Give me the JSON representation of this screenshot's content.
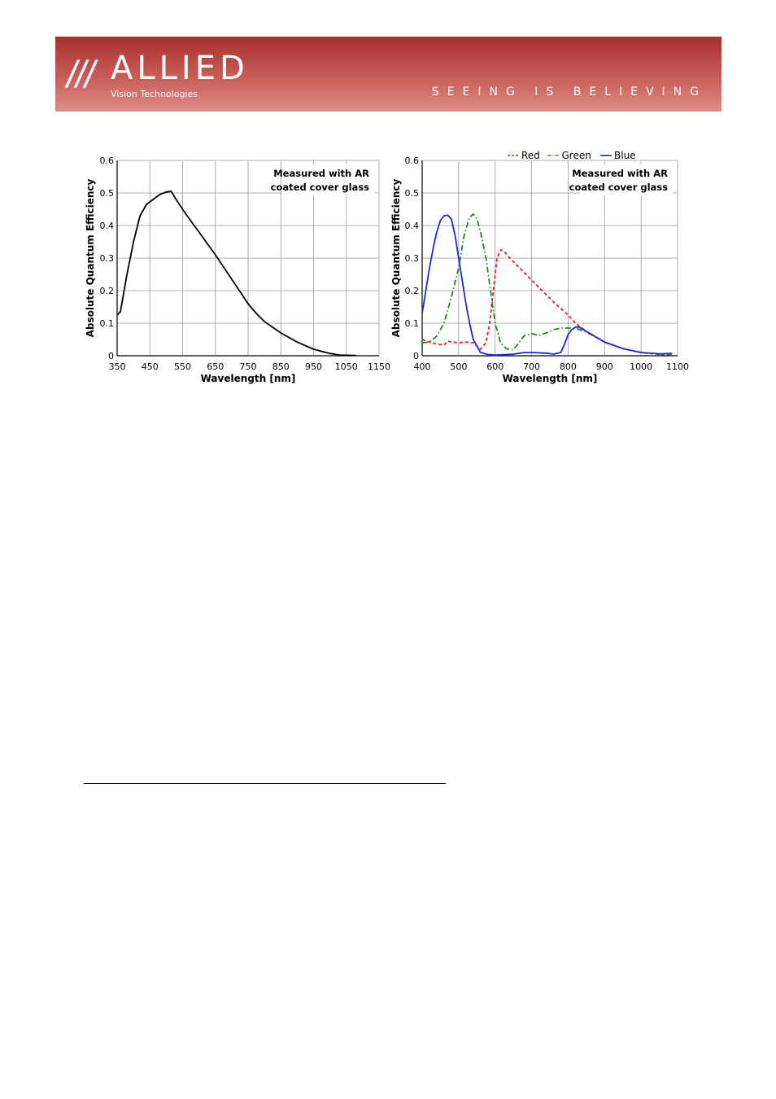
{
  "header": {
    "logo_slashes": "///",
    "logo_word": "ALLIED",
    "logo_sub": "Vision Technologies",
    "slogan": "SEEING IS BELIEVING",
    "colors": {
      "banner_top": "#a8302d",
      "banner_bottom": "#dd8c88"
    }
  },
  "chart_data": [
    {
      "type": "line",
      "annotation": [
        "Measured with AR",
        "coated cover glass"
      ],
      "xlabel": "Wavelength [nm]",
      "ylabel": "Absolute Quantum Efficiency",
      "xlim": [
        350,
        1150
      ],
      "ylim": [
        0,
        0.6
      ],
      "xticks": [
        "350",
        "450",
        "550",
        "650",
        "750",
        "850",
        "950",
        "1050",
        "1150"
      ],
      "yticks": [
        "0",
        "0.1",
        "0.2",
        "0.3",
        "0.4",
        "0.5",
        "0.6"
      ],
      "grid": true,
      "series": [
        {
          "color": "#000000",
          "style": "solid",
          "x": [
            350,
            360,
            380,
            400,
            420,
            440,
            460,
            480,
            500,
            515,
            530,
            560,
            600,
            650,
            700,
            750,
            775,
            800,
            850,
            900,
            950,
            1000,
            1030,
            1080
          ],
          "y": [
            0.125,
            0.135,
            0.25,
            0.35,
            0.43,
            0.465,
            0.48,
            0.495,
            0.503,
            0.505,
            0.48,
            0.435,
            0.38,
            0.31,
            0.235,
            0.16,
            0.13,
            0.105,
            0.07,
            0.042,
            0.02,
            0.007,
            0.002,
            0.001
          ]
        }
      ]
    },
    {
      "type": "line",
      "annotation": [
        "Measured with AR",
        "coated cover glass"
      ],
      "xlabel": "Wavelength [nm]",
      "ylabel": "Absolute Quantum Efficiency",
      "xlim": [
        400,
        1100
      ],
      "ylim": [
        0,
        0.6
      ],
      "xticks": [
        "400",
        "500",
        "600",
        "700",
        "800",
        "900",
        "1000",
        "1100"
      ],
      "yticks": [
        "0",
        "0.1",
        "0.2",
        "0.3",
        "0.4",
        "0.5",
        "0.6"
      ],
      "grid": true,
      "legend_position": "top",
      "series": [
        {
          "name": "Red",
          "color": "#ee1c1c",
          "style": "dashed",
          "x": [
            400,
            420,
            440,
            460,
            470,
            480,
            500,
            520,
            540,
            560,
            575,
            585,
            595,
            605,
            615,
            625,
            640,
            680,
            720,
            760,
            800,
            820,
            850,
            880,
            900,
            950,
            1000,
            1050,
            1085
          ],
          "y": [
            0.05,
            0.042,
            0.036,
            0.033,
            0.045,
            0.042,
            0.04,
            0.042,
            0.04,
            0.02,
            0.04,
            0.1,
            0.2,
            0.3,
            0.325,
            0.32,
            0.3,
            0.255,
            0.21,
            0.165,
            0.125,
            0.1,
            0.075,
            0.055,
            0.042,
            0.022,
            0.01,
            0.004,
            0.003
          ]
        },
        {
          "name": "Green",
          "color": "#1e8a1e",
          "style": "dash-dot",
          "x": [
            400,
            420,
            440,
            460,
            480,
            500,
            515,
            530,
            540,
            550,
            560,
            575,
            590,
            600,
            615,
            630,
            650,
            665,
            680,
            700,
            720,
            740,
            760,
            780,
            800,
            820,
            850,
            880,
            900,
            950,
            1000,
            1050,
            1085
          ],
          "y": [
            0.04,
            0.042,
            0.06,
            0.1,
            0.18,
            0.27,
            0.37,
            0.425,
            0.435,
            0.42,
            0.38,
            0.3,
            0.18,
            0.1,
            0.04,
            0.022,
            0.018,
            0.04,
            0.062,
            0.068,
            0.062,
            0.07,
            0.08,
            0.085,
            0.085,
            0.085,
            0.072,
            0.055,
            0.042,
            0.022,
            0.01,
            0.005,
            0.005
          ]
        },
        {
          "name": "Blue",
          "color": "#1c2ad4",
          "style": "solid",
          "x": [
            400,
            410,
            420,
            430,
            440,
            450,
            460,
            470,
            480,
            490,
            500,
            510,
            520,
            530,
            540,
            550,
            560,
            580,
            600,
            620,
            650,
            680,
            700,
            740,
            760,
            780,
            790,
            800,
            810,
            820,
            830,
            850,
            880,
            900,
            950,
            1000,
            1050,
            1085
          ],
          "y": [
            0.13,
            0.2,
            0.27,
            0.33,
            0.38,
            0.415,
            0.43,
            0.432,
            0.42,
            0.37,
            0.3,
            0.23,
            0.16,
            0.1,
            0.05,
            0.03,
            0.01,
            0.004,
            0.002,
            0.003,
            0.005,
            0.01,
            0.01,
            0.008,
            0.005,
            0.01,
            0.035,
            0.065,
            0.08,
            0.088,
            0.088,
            0.075,
            0.055,
            0.042,
            0.022,
            0.01,
            0.006,
            0.007
          ]
        }
      ]
    }
  ]
}
